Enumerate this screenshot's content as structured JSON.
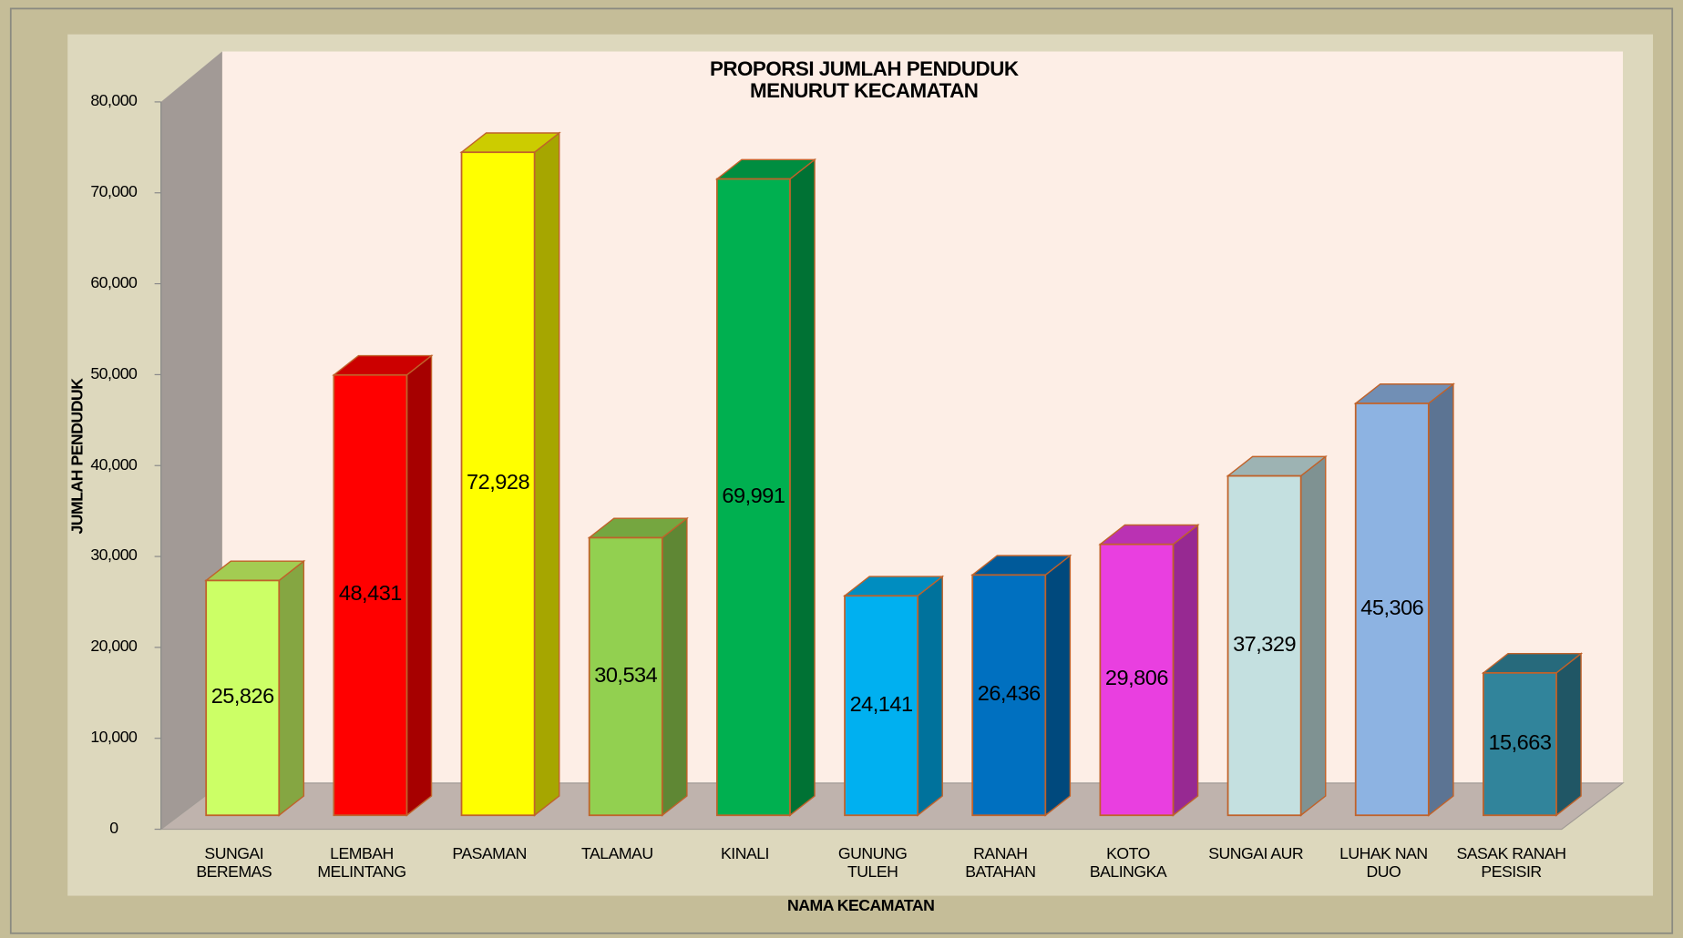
{
  "chart_data": {
    "type": "bar3d",
    "title": "PROPORSI JUMLAH PENDUDUK\nMENURUT KECAMATAN",
    "x_label": "NAMA KECAMATAN",
    "y_label": "JUMLAH PENDUDUK",
    "categories": [
      "SUNGAI\nBEREMAS",
      "LEMBAH\nMELINTANG",
      "PASAMAN",
      "TALAMAU",
      "KINALI",
      "GUNUNG\nTULEH",
      "RANAH\nBATAHAN",
      "KOTO\nBALINGKA",
      "SUNGAI AUR",
      "LUHAK NAN\nDUO",
      "SASAK RANAH\nPESISIR"
    ],
    "values": [
      25826,
      48431,
      72928,
      30534,
      69991,
      24141,
      26436,
      29806,
      37329,
      45306,
      15663
    ],
    "value_labels": [
      "25,826",
      "48,431",
      "72,928",
      "30,534",
      "69,991",
      "24,141",
      "26,436",
      "29,806",
      "37,329",
      "45,306",
      "15,663"
    ],
    "colors": [
      "#ccff66",
      "#ff0000",
      "#ffff00",
      "#92d050",
      "#00b050",
      "#00b0f0",
      "#0070c0",
      "#e93fe0",
      "#c4e0e0",
      "#8db3e2",
      "#31849b"
    ],
    "ylim": [
      0,
      80000
    ],
    "yticks": [
      0,
      {
        "value": 10000,
        "label": "10,000"
      },
      {
        "value": 20000,
        "label": "20,000"
      },
      {
        "value": 30000,
        "label": "30,000"
      },
      {
        "value": 40000,
        "label": "40,000"
      },
      {
        "value": 50000,
        "label": "50,000"
      },
      {
        "value": 60000,
        "label": "60,000"
      },
      {
        "value": 70000,
        "label": "70,000"
      },
      {
        "value": 80000,
        "label": "80,000"
      }
    ],
    "grid": false
  }
}
